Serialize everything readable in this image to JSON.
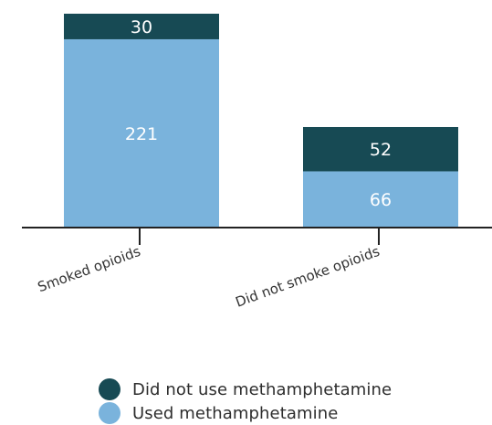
{
  "chart_data": {
    "type": "bar",
    "stacked": true,
    "categories": [
      "Smoked opioids",
      "Did not smoke opioids"
    ],
    "series": [
      {
        "name": "Used methamphetamine",
        "values": [
          221,
          66
        ],
        "color": "#7ab3dc"
      },
      {
        "name": "Did not use methamphetamine",
        "values": [
          30,
          52
        ],
        "color": "#174a54"
      }
    ],
    "title": "",
    "xlabel": "",
    "ylabel": "",
    "ylim": [
      0,
      251
    ],
    "grid": false,
    "legend_position": "bottom",
    "legend_order": [
      "Did not use methamphetamine",
      "Used methamphetamine"
    ],
    "colors": {
      "axis": "#222222",
      "label_on_bar": "#ffffff",
      "category_label": "#333333"
    }
  }
}
